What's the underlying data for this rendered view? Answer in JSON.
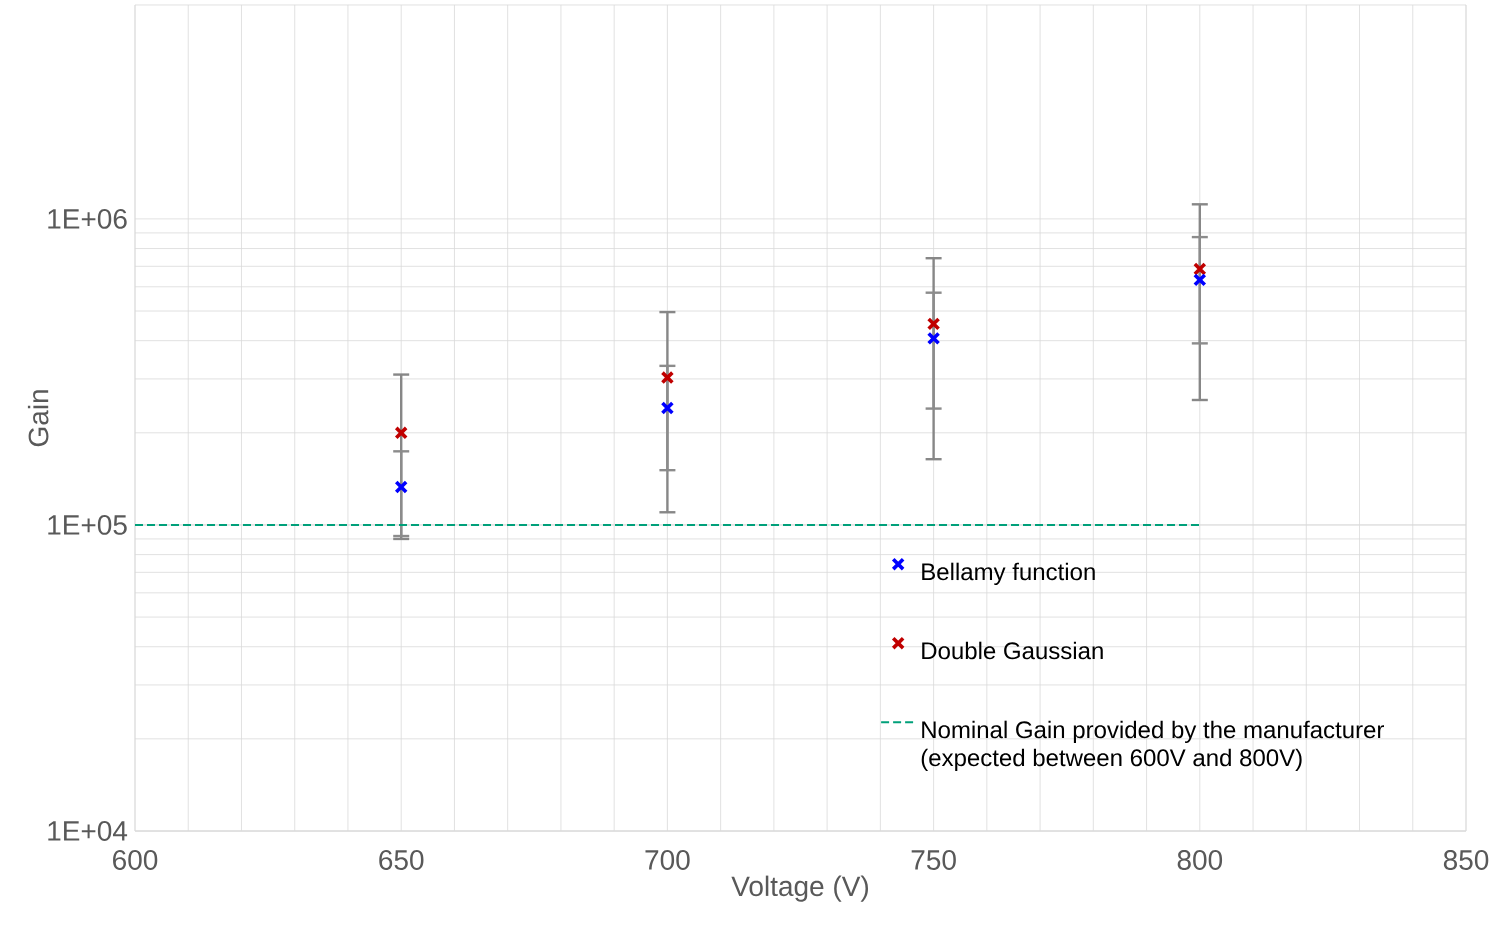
{
  "chart_data": {
    "type": "scatter",
    "xlabel": "Voltage (V)",
    "ylabel": "Gain",
    "x": [
      650,
      700,
      750,
      800
    ],
    "series": [
      {
        "name": "Bellamy function",
        "color": "#0000ff",
        "values": [
          133000,
          241000,
          407000,
          632000
        ],
        "errors": [
          41000,
          90000,
          167000,
          240000
        ]
      },
      {
        "name": "Double Gaussian",
        "color": "#c00000",
        "values": [
          200000,
          303000,
          454000,
          686000
        ],
        "errors": [
          110000,
          193000,
          290000,
          430000
        ]
      },
      {
        "name": "Nominal Gain provided by the manufacturer (expected between 600V and 800V)",
        "type": "line",
        "x": [
          600,
          800
        ],
        "values": [
          100000,
          100000
        ],
        "color": "#00a07a",
        "line_style": "dashed",
        "marker": "none"
      }
    ],
    "xlim": [
      600,
      850
    ],
    "xticks": [
      600,
      650,
      700,
      750,
      800,
      850
    ],
    "ylim": [
      10000,
      5000000
    ],
    "yticks": [
      {
        "value": 10000,
        "label": "1E+04"
      },
      {
        "value": 100000,
        "label": "1E+05"
      },
      {
        "value": 1000000,
        "label": "1E+06"
      }
    ],
    "log": true,
    "grid": true,
    "legend": "bottom right",
    "marker": "cross"
  }
}
